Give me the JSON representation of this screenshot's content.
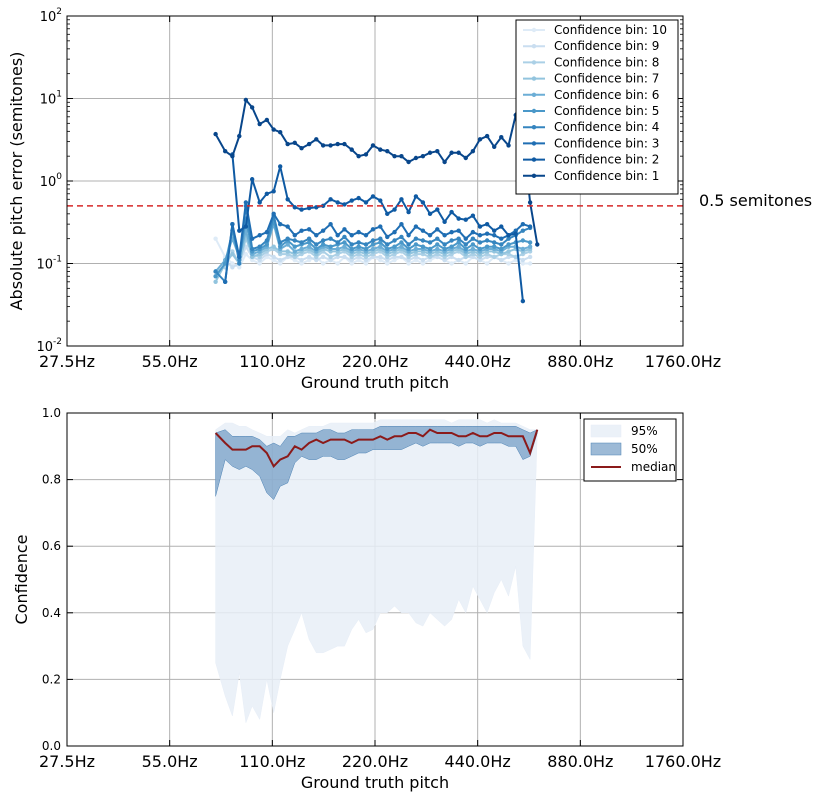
{
  "chart_data": [
    {
      "type": "line",
      "xlabel": "Ground truth pitch",
      "ylabel": "Absolute pitch error (semitones)",
      "x_scale": "log2",
      "y_scale": "log10",
      "xlim_hz": [
        27.5,
        1760.0
      ],
      "ylim": [
        0.01,
        100
      ],
      "x_ticks": [
        27.5,
        55.0,
        110.0,
        220.0,
        440.0,
        880.0,
        1760.0
      ],
      "x_tick_labels": [
        "27.5Hz",
        "55.0Hz",
        "110.0Hz",
        "220.0Hz",
        "440.0Hz",
        "880.0Hz",
        "1760.0Hz"
      ],
      "y_ticks": [
        0.01,
        0.1,
        1,
        10,
        100
      ],
      "y_tick_labels": [
        [
          "10",
          "-2"
        ],
        [
          "10",
          "-1"
        ],
        [
          "10",
          "0"
        ],
        [
          "10",
          "1"
        ],
        [
          "10",
          "2"
        ]
      ],
      "grid": true,
      "legend_placement": "top-right",
      "reference_line": {
        "y": 0.5,
        "label": "0.5 semitones",
        "color": "#d62728",
        "style": "dashed"
      },
      "x": [
        75,
        80,
        84,
        88,
        92,
        96,
        101,
        106,
        111,
        116,
        122,
        128,
        134,
        141,
        148,
        155,
        163,
        171,
        179,
        188,
        197,
        207,
        217,
        228,
        239,
        251,
        263,
        276,
        290,
        304,
        319,
        335,
        352,
        369,
        387,
        406,
        426,
        447,
        469,
        492,
        516,
        542,
        569,
        597,
        627,
        658
      ],
      "series": [
        {
          "name": "Confidence bin: 10",
          "color": "#deebf7",
          "values": [
            0.2,
            0.12,
            0.1,
            0.09,
            0.13,
            0.11,
            0.1,
            0.12,
            0.11,
            0.1,
            0.12,
            0.11,
            0.1,
            0.11,
            0.12,
            0.1,
            0.11,
            0.1,
            0.12,
            0.1,
            0.11,
            0.1,
            0.12,
            0.11,
            0.1,
            0.11,
            0.12,
            0.1,
            0.11,
            0.1,
            0.11,
            0.12,
            0.11,
            0.1,
            0.11,
            0.1,
            0.12,
            0.11,
            0.1,
            0.12,
            0.11,
            0.1,
            0.11,
            0.1,
            0.1,
            null
          ]
        },
        {
          "name": "Confidence bin: 9",
          "color": "#cadef0",
          "values": [
            0.07,
            0.11,
            0.09,
            0.1,
            0.16,
            0.12,
            0.11,
            0.13,
            0.12,
            0.11,
            0.12,
            0.12,
            0.11,
            0.12,
            0.11,
            0.12,
            0.11,
            0.12,
            0.12,
            0.11,
            0.12,
            0.11,
            0.12,
            0.12,
            0.11,
            0.12,
            0.12,
            0.11,
            0.12,
            0.11,
            0.12,
            0.12,
            0.11,
            0.12,
            0.11,
            0.12,
            0.12,
            0.11,
            0.12,
            0.12,
            0.11,
            0.12,
            0.12,
            0.11,
            0.12,
            null
          ]
        },
        {
          "name": "Confidence bin: 8",
          "color": "#abd0e6",
          "values": [
            0.08,
            0.09,
            0.14,
            0.1,
            0.2,
            0.13,
            0.12,
            0.14,
            0.15,
            0.13,
            0.13,
            0.12,
            0.13,
            0.14,
            0.12,
            0.14,
            0.12,
            0.13,
            0.14,
            0.12,
            0.13,
            0.12,
            0.13,
            0.14,
            0.12,
            0.13,
            0.14,
            0.12,
            0.13,
            0.13,
            0.12,
            0.13,
            0.12,
            0.13,
            0.14,
            0.12,
            0.13,
            0.12,
            0.13,
            0.12,
            0.13,
            0.13,
            0.12,
            0.13,
            0.14,
            null
          ]
        },
        {
          "name": "Confidence bin: 7",
          "color": "#92c4de",
          "values": [
            0.06,
            0.1,
            0.13,
            0.1,
            0.22,
            0.12,
            0.13,
            0.15,
            0.16,
            0.14,
            0.14,
            0.13,
            0.14,
            0.15,
            0.13,
            0.15,
            0.14,
            0.14,
            0.15,
            0.13,
            0.14,
            0.13,
            0.14,
            0.15,
            0.13,
            0.14,
            0.15,
            0.13,
            0.14,
            0.14,
            0.13,
            0.14,
            0.13,
            0.14,
            0.15,
            0.13,
            0.14,
            0.13,
            0.14,
            0.14,
            0.13,
            0.14,
            0.15,
            0.14,
            0.15,
            null
          ]
        },
        {
          "name": "Confidence bin: 6",
          "color": "#6caed6",
          "values": [
            0.08,
            0.11,
            0.2,
            0.12,
            0.25,
            0.13,
            0.14,
            0.16,
            0.3,
            0.15,
            0.17,
            0.14,
            0.15,
            0.16,
            0.14,
            0.16,
            0.15,
            0.15,
            0.16,
            0.14,
            0.15,
            0.14,
            0.15,
            0.16,
            0.14,
            0.15,
            0.16,
            0.14,
            0.15,
            0.15,
            0.14,
            0.15,
            0.14,
            0.15,
            0.16,
            0.14,
            0.15,
            0.14,
            0.15,
            0.15,
            0.14,
            0.16,
            0.16,
            0.15,
            0.16,
            null
          ]
        },
        {
          "name": "Confidence bin: 5",
          "color": "#4a98c9",
          "values": [
            0.07,
            0.1,
            0.25,
            0.11,
            0.35,
            0.14,
            0.15,
            0.17,
            0.33,
            0.16,
            0.19,
            0.16,
            0.17,
            0.18,
            0.15,
            0.17,
            0.16,
            0.17,
            0.18,
            0.15,
            0.16,
            0.15,
            0.17,
            0.18,
            0.15,
            0.16,
            0.18,
            0.15,
            0.17,
            0.16,
            0.15,
            0.17,
            0.15,
            0.16,
            0.18,
            0.15,
            0.17,
            0.15,
            0.16,
            0.16,
            0.15,
            0.17,
            0.18,
            0.19,
            0.18,
            null
          ]
        },
        {
          "name": "Confidence bin: 4",
          "color": "#3585bf",
          "values": [
            0.08,
            0.06,
            0.3,
            0.1,
            0.5,
            0.15,
            0.16,
            0.19,
            0.38,
            0.18,
            0.2,
            0.19,
            0.18,
            0.2,
            0.17,
            0.19,
            0.2,
            0.18,
            0.21,
            0.17,
            0.18,
            0.17,
            0.19,
            0.2,
            0.17,
            0.19,
            0.21,
            0.17,
            0.2,
            0.19,
            0.18,
            0.2,
            0.17,
            0.19,
            0.2,
            0.17,
            0.2,
            0.18,
            0.19,
            0.18,
            0.17,
            0.2,
            0.22,
            0.25,
            0.27,
            null
          ]
        },
        {
          "name": "Confidence bin: 3",
          "color": "#1f6eb3",
          "values": [
            null,
            0.06,
            0.3,
            0.12,
            0.55,
            0.2,
            0.22,
            0.24,
            0.4,
            0.3,
            0.28,
            0.22,
            0.25,
            0.26,
            0.22,
            0.25,
            0.3,
            0.22,
            0.26,
            0.22,
            0.24,
            0.22,
            0.26,
            0.28,
            0.21,
            0.24,
            0.3,
            0.22,
            0.28,
            0.25,
            0.22,
            0.26,
            0.22,
            0.24,
            0.25,
            0.2,
            0.24,
            0.22,
            0.23,
            0.22,
            0.2,
            0.22,
            0.25,
            0.3,
            0.28,
            null
          ]
        },
        {
          "name": "Confidence bin: 2",
          "color": "#0f5aa3",
          "values": [
            null,
            null,
            2.1,
            0.25,
            0.28,
            1.05,
            0.55,
            0.7,
            0.75,
            1.5,
            0.6,
            0.48,
            0.45,
            0.47,
            0.48,
            0.5,
            0.6,
            0.55,
            0.52,
            0.58,
            0.62,
            0.55,
            0.65,
            0.58,
            0.4,
            0.45,
            0.6,
            0.42,
            0.65,
            0.55,
            0.4,
            0.45,
            0.32,
            0.42,
            0.35,
            0.34,
            0.38,
            0.28,
            0.3,
            0.25,
            0.28,
            0.22,
            0.23,
            0.035,
            null,
            null
          ]
        },
        {
          "name": "Confidence bin: 1",
          "color": "#08468b",
          "values": [
            3.7,
            2.3,
            2.0,
            3.5,
            9.6,
            7.8,
            4.9,
            5.5,
            4.2,
            3.9,
            2.8,
            2.9,
            2.5,
            2.8,
            3.2,
            2.7,
            2.7,
            2.8,
            2.8,
            2.4,
            2.0,
            2.1,
            2.7,
            2.4,
            2.3,
            2.0,
            2.0,
            1.7,
            1.9,
            2.0,
            2.2,
            2.3,
            1.7,
            2.2,
            2.2,
            1.9,
            2.3,
            3.2,
            3.5,
            2.6,
            3.4,
            2.7,
            6.3,
            3.9,
            0.55,
            0.17
          ]
        }
      ]
    },
    {
      "type": "area",
      "xlabel": "Ground truth pitch",
      "ylabel": "Confidence",
      "x_scale": "log2",
      "xlim_hz": [
        27.5,
        1760.0
      ],
      "ylim": [
        0.0,
        1.0
      ],
      "x_ticks": [
        27.5,
        55.0,
        110.0,
        220.0,
        440.0,
        880.0,
        1760.0
      ],
      "x_tick_labels": [
        "27.5Hz",
        "55.0Hz",
        "110.0Hz",
        "220.0Hz",
        "440.0Hz",
        "880.0Hz",
        "1760.0Hz"
      ],
      "y_ticks": [
        0.0,
        0.2,
        0.4,
        0.6,
        0.8,
        1.0
      ],
      "y_tick_labels": [
        "0.0",
        "0.2",
        "0.4",
        "0.6",
        "0.8",
        "1.0"
      ],
      "grid": true,
      "legend_placement": "top-right",
      "x": [
        75,
        80,
        84,
        88,
        92,
        96,
        101,
        106,
        111,
        116,
        122,
        128,
        134,
        141,
        148,
        155,
        163,
        171,
        179,
        188,
        197,
        207,
        217,
        228,
        239,
        251,
        263,
        276,
        290,
        304,
        319,
        335,
        352,
        369,
        387,
        406,
        426,
        447,
        469,
        492,
        516,
        542,
        569,
        597,
        627,
        658
      ],
      "series": [
        {
          "name": "95%",
          "color": "#e7eef7",
          "kind": "band",
          "lower": [
            0.25,
            0.15,
            0.09,
            0.22,
            0.07,
            0.12,
            0.08,
            0.2,
            0.1,
            0.2,
            0.3,
            0.35,
            0.4,
            0.32,
            0.28,
            0.28,
            0.29,
            0.3,
            0.3,
            0.35,
            0.38,
            0.34,
            0.35,
            0.4,
            0.4,
            0.42,
            0.4,
            0.4,
            0.37,
            0.36,
            0.4,
            0.38,
            0.36,
            0.38,
            0.44,
            0.4,
            0.48,
            0.44,
            0.4,
            0.46,
            0.5,
            0.45,
            0.54,
            0.3,
            0.26,
            0.94
          ],
          "upper": [
            0.95,
            0.97,
            0.97,
            0.96,
            0.96,
            0.95,
            0.94,
            0.93,
            0.93,
            0.93,
            0.95,
            0.94,
            0.95,
            0.96,
            0.96,
            0.96,
            0.97,
            0.97,
            0.97,
            0.97,
            0.97,
            0.97,
            0.97,
            0.98,
            0.98,
            0.98,
            0.98,
            0.98,
            0.98,
            0.98,
            0.98,
            0.98,
            0.98,
            0.97,
            0.98,
            0.98,
            0.98,
            0.98,
            0.97,
            0.98,
            0.97,
            0.97,
            0.97,
            0.96,
            0.95,
            0.95
          ]
        },
        {
          "name": "50%",
          "color": "#4c82b4",
          "kind": "band",
          "lower": [
            0.75,
            0.86,
            0.84,
            0.83,
            0.84,
            0.83,
            0.81,
            0.76,
            0.74,
            0.78,
            0.79,
            0.85,
            0.87,
            0.86,
            0.86,
            0.87,
            0.87,
            0.86,
            0.86,
            0.87,
            0.88,
            0.88,
            0.89,
            0.89,
            0.89,
            0.89,
            0.89,
            0.9,
            0.91,
            0.9,
            0.91,
            0.91,
            0.91,
            0.91,
            0.9,
            0.91,
            0.91,
            0.9,
            0.91,
            0.91,
            0.91,
            0.9,
            0.9,
            0.86,
            0.87,
            0.94
          ],
          "upper": [
            0.94,
            0.95,
            0.93,
            0.93,
            0.93,
            0.93,
            0.92,
            0.9,
            0.91,
            0.9,
            0.93,
            0.93,
            0.94,
            0.94,
            0.94,
            0.95,
            0.95,
            0.94,
            0.94,
            0.95,
            0.95,
            0.95,
            0.95,
            0.96,
            0.96,
            0.96,
            0.96,
            0.96,
            0.96,
            0.96,
            0.96,
            0.96,
            0.96,
            0.96,
            0.96,
            0.96,
            0.96,
            0.96,
            0.96,
            0.96,
            0.96,
            0.96,
            0.96,
            0.95,
            0.94,
            0.95
          ]
        },
        {
          "name": "median",
          "color": "#8b1a1a",
          "kind": "line",
          "values": [
            0.94,
            0.91,
            0.89,
            0.89,
            0.89,
            0.9,
            0.9,
            0.88,
            0.84,
            0.86,
            0.87,
            0.9,
            0.89,
            0.91,
            0.92,
            0.91,
            0.92,
            0.92,
            0.92,
            0.91,
            0.92,
            0.92,
            0.92,
            0.93,
            0.92,
            0.93,
            0.93,
            0.94,
            0.94,
            0.93,
            0.95,
            0.94,
            0.94,
            0.94,
            0.93,
            0.93,
            0.94,
            0.93,
            0.93,
            0.94,
            0.94,
            0.93,
            0.93,
            0.93,
            0.88,
            0.95
          ]
        }
      ]
    }
  ]
}
